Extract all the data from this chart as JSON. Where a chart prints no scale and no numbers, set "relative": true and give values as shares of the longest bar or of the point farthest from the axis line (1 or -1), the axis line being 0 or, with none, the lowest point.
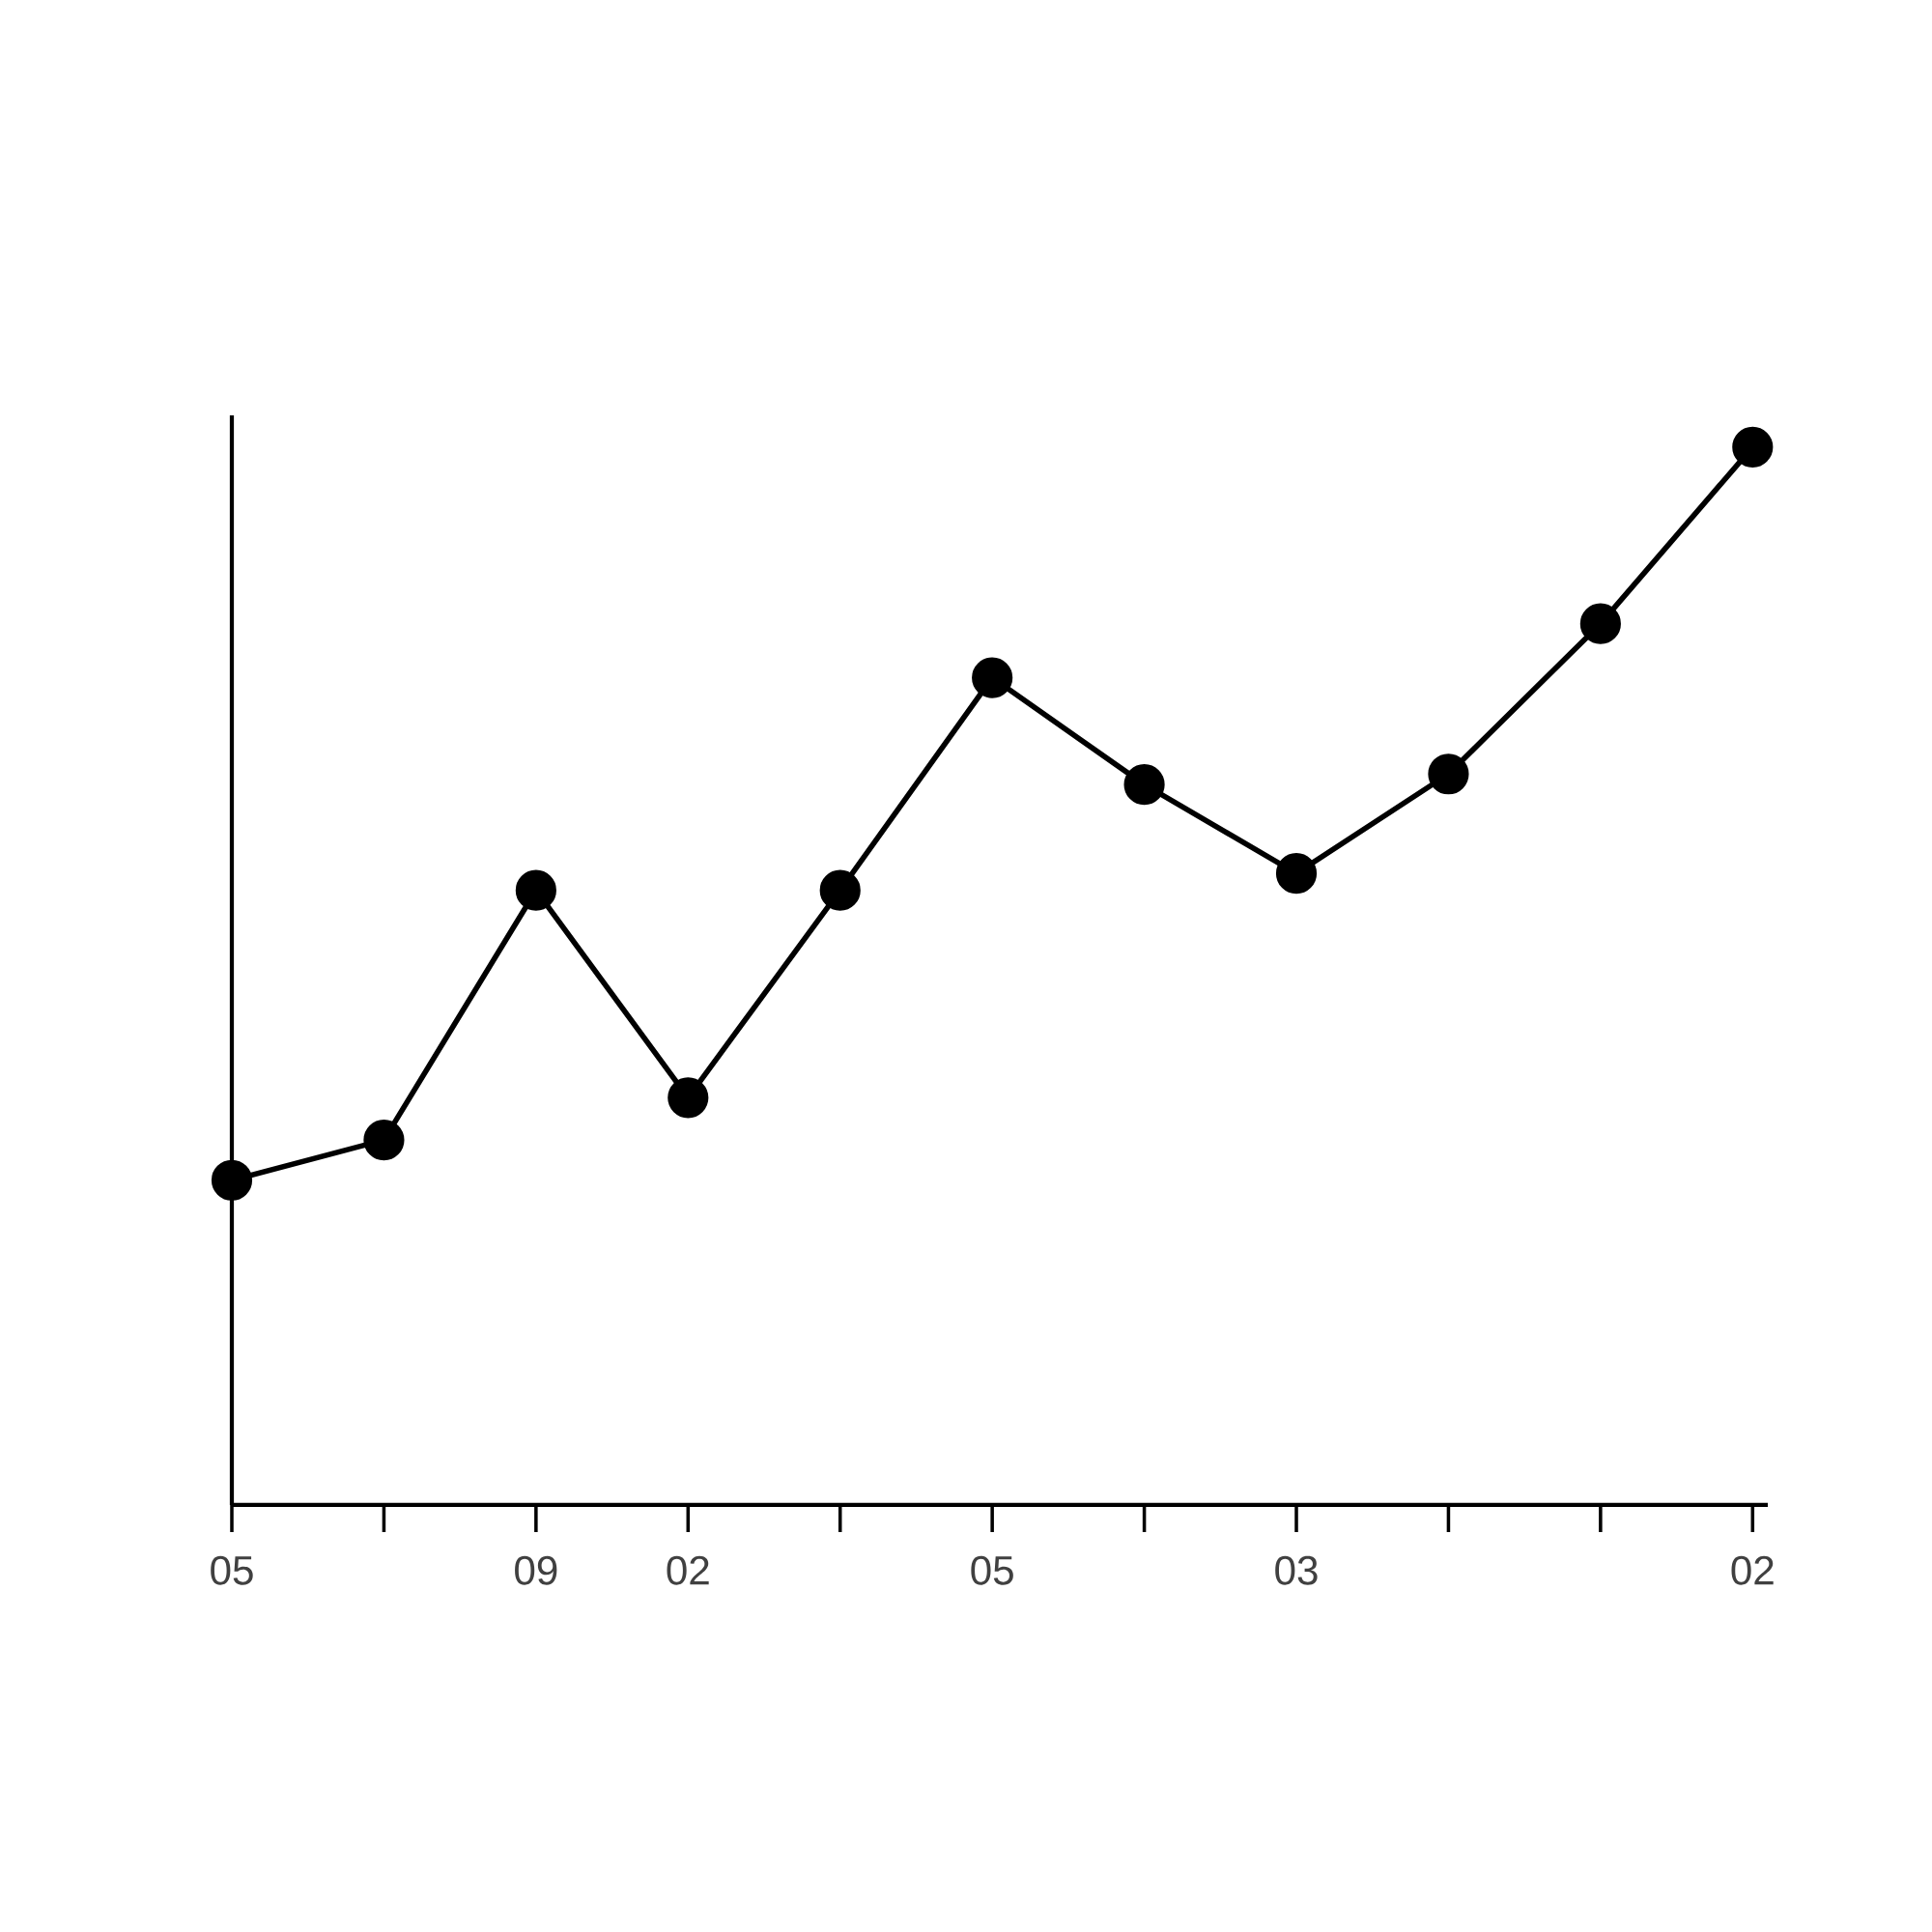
{
  "chart_data": {
    "type": "line",
    "relative": true,
    "marker": "circle",
    "line_style": "solid",
    "categories": [
      "05",
      null,
      "09",
      "02",
      null,
      "05",
      null,
      "03",
      null,
      null,
      "02"
    ],
    "series": [
      {
        "color": "#000000",
        "values": [
          0.307,
          0.345,
          0.581,
          0.385,
          0.581,
          0.782,
          0.681,
          0.597,
          0.691,
          0.833,
          1
        ]
      }
    ]
  }
}
